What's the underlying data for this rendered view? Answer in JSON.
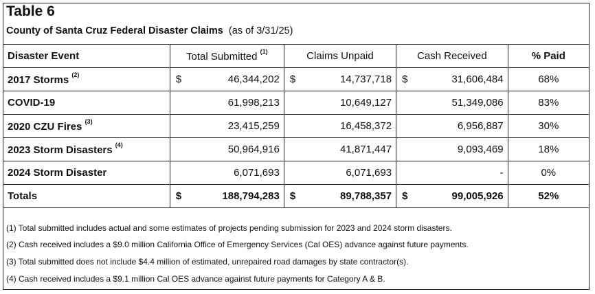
{
  "header": {
    "title": "Table 6",
    "subtitle": "County of Santa Cruz Federal Disaster Claims",
    "as_of": "(as of 3/31/25)"
  },
  "columns": {
    "event": "Disaster Event",
    "submitted": "Total Submitted",
    "submitted_note": "(1)",
    "unpaid": "Claims Unpaid",
    "received": "Cash Received",
    "paid": "% Paid"
  },
  "rows": [
    {
      "event": "2017 Storms",
      "note": "(2)",
      "cur": "$",
      "submitted": "46,344,202",
      "unpaid": "14,737,718",
      "received": "31,606,484",
      "paid": "68%"
    },
    {
      "event": "COVID-19",
      "note": "",
      "cur": "",
      "submitted": "61,998,213",
      "unpaid": "10,649,127",
      "received": "51,349,086",
      "paid": "83%"
    },
    {
      "event": "2020 CZU Fires",
      "note": "(3)",
      "cur": "",
      "submitted": "23,415,259",
      "unpaid": "16,458,372",
      "received": "6,956,887",
      "paid": "30%"
    },
    {
      "event": "2023 Storm Disasters",
      "note": "(4)",
      "cur": "",
      "submitted": "50,964,916",
      "unpaid": "41,871,447",
      "received": "9,093,469",
      "paid": "18%"
    },
    {
      "event": "2024 Storm Disaster",
      "note": "",
      "cur": "",
      "submitted": "6,071,693",
      "unpaid": "6,071,693",
      "received": "-",
      "paid": "0%"
    }
  ],
  "totals": {
    "label": "Totals",
    "cur": "$",
    "submitted": "188,794,283",
    "unpaid": "89,788,357",
    "received": "99,005,926",
    "paid": "52%"
  },
  "footnotes": [
    "(1) Total submitted includes actual and some estimates of projects pending submission for 2023 and 2024 storm disasters.",
    "(2)  Cash received includes a $9.0 million California Office of Emergency Services  (Cal OES) advance against future  payments.",
    "(3)  Total submitted does not include $4.4 million of estimated, unrepaired road damages by state contractor(s).",
    "(4)  Cash received includes a $9.1 million Cal OES advance against future payments for Category A & B."
  ]
}
